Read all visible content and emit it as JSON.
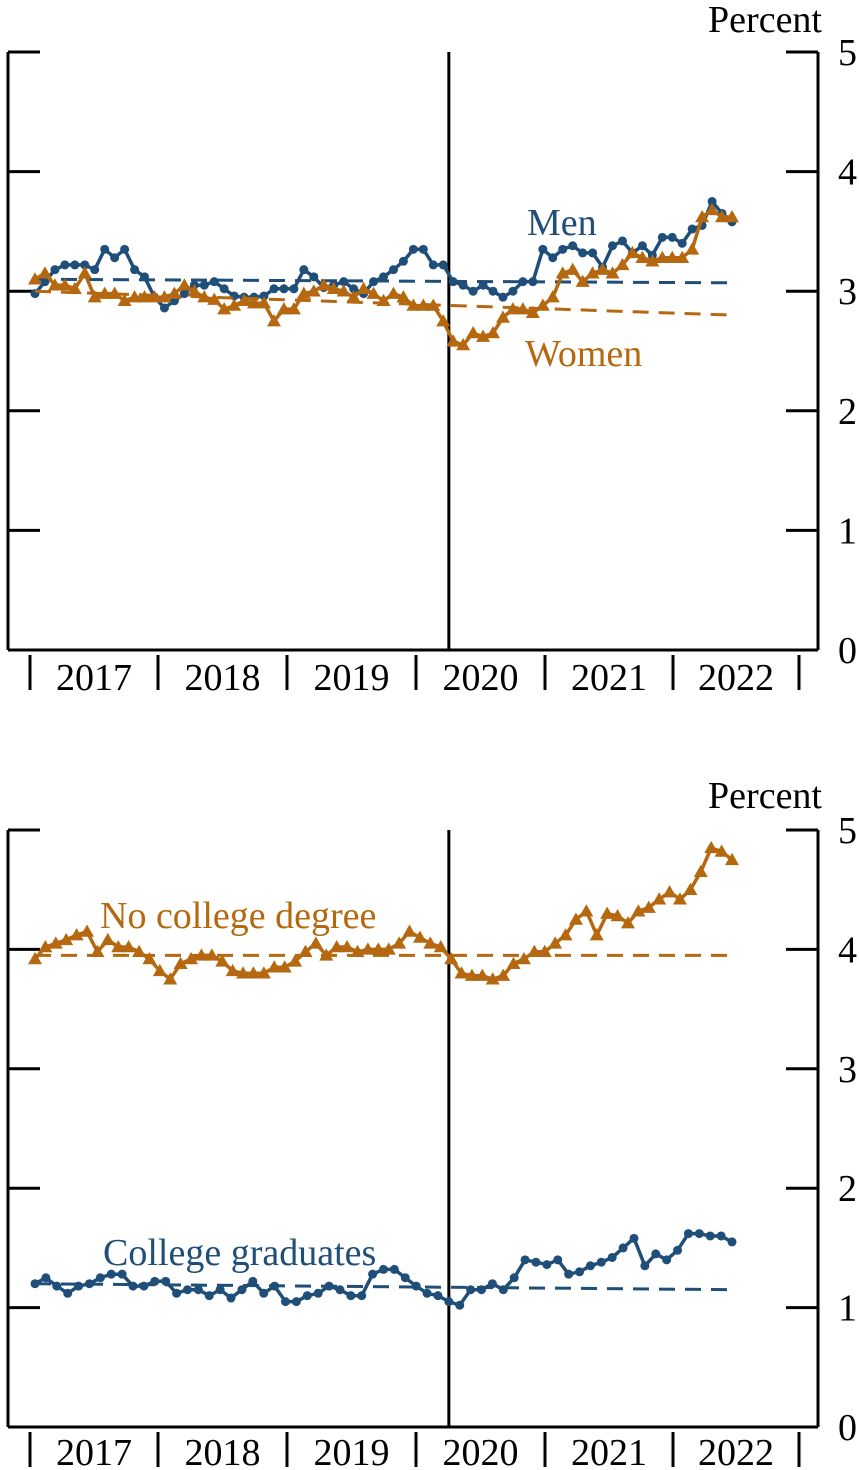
{
  "colors": {
    "men_blue": "#1f4e79",
    "women_orange": "#b5680f",
    "axis": "#000000"
  },
  "chart_data": [
    {
      "type": "line",
      "ylabel": "Percent",
      "y_ticks": [
        "0",
        "1",
        "2",
        "3",
        "4",
        "5"
      ],
      "ylim": [
        0,
        5
      ],
      "year_labels": [
        "2017",
        "2018",
        "2019",
        "2020",
        "2021",
        "2022"
      ],
      "x_range": [
        "2017-01",
        "2022-05"
      ],
      "event_line_date": "2020-03",
      "series": [
        {
          "name": "Men",
          "marker": "circle",
          "color": "#1f4e79",
          "trend": [
            3.1,
            3.07
          ],
          "values": [
            2.98,
            3.08,
            3.18,
            3.22,
            3.22,
            3.22,
            3.18,
            3.35,
            3.28,
            3.35,
            3.18,
            3.12,
            2.95,
            2.86,
            2.92,
            2.98,
            3.05,
            3.05,
            3.08,
            3.02,
            2.96,
            2.95,
            2.95,
            2.96,
            3.02,
            3.02,
            3.02,
            3.18,
            3.12,
            3.03,
            3.05,
            3.08,
            3.02,
            2.98,
            3.08,
            3.12,
            3.18,
            3.25,
            3.35,
            3.35,
            3.22,
            3.22,
            3.08,
            3.05,
            3.0,
            3.05,
            3.0,
            2.95,
            3.0,
            3.08,
            3.08,
            3.35,
            3.28,
            3.35,
            3.38,
            3.32,
            3.32,
            3.2,
            3.38,
            3.42,
            3.32,
            3.38,
            3.3,
            3.45,
            3.45,
            3.4,
            3.52,
            3.55,
            3.75,
            3.65,
            3.58
          ]
        },
        {
          "name": "Women",
          "marker": "triangle",
          "color": "#b5680f",
          "trend": [
            3.0,
            2.8
          ],
          "values": [
            3.1,
            3.15,
            3.05,
            3.05,
            3.02,
            3.15,
            2.95,
            2.98,
            2.98,
            2.92,
            2.95,
            2.95,
            2.95,
            2.95,
            2.98,
            3.05,
            3.0,
            2.95,
            2.93,
            2.85,
            2.88,
            2.92,
            2.9,
            2.9,
            2.75,
            2.85,
            2.85,
            2.98,
            3.0,
            3.05,
            3.02,
            3.0,
            2.95,
            3.02,
            2.98,
            2.92,
            2.98,
            2.95,
            2.88,
            2.88,
            2.88,
            2.75,
            2.58,
            2.55,
            2.65,
            2.62,
            2.65,
            2.78,
            2.85,
            2.85,
            2.82,
            2.88,
            2.95,
            3.15,
            3.18,
            3.08,
            3.15,
            3.18,
            3.15,
            3.22,
            3.32,
            3.28,
            3.25,
            3.28,
            3.28,
            3.28,
            3.35,
            3.62,
            3.68,
            3.62,
            3.62
          ]
        }
      ],
      "annotations": [
        "Men",
        "Women"
      ]
    },
    {
      "type": "line",
      "ylabel": "Percent",
      "y_ticks": [
        "0",
        "1",
        "2",
        "3",
        "4",
        "5"
      ],
      "ylim": [
        0,
        5
      ],
      "year_labels": [
        "2017",
        "2018",
        "2019",
        "2020",
        "2021",
        "2022"
      ],
      "x_range": [
        "2017-01",
        "2022-05"
      ],
      "event_line_date": "2020-03",
      "series": [
        {
          "name": "No college degree",
          "marker": "triangle",
          "color": "#b5680f",
          "trend": [
            3.95,
            3.95
          ],
          "values": [
            3.92,
            4.02,
            4.05,
            4.08,
            4.12,
            4.15,
            3.98,
            4.08,
            4.02,
            4.02,
            3.98,
            3.92,
            3.82,
            3.75,
            3.88,
            3.92,
            3.95,
            3.95,
            3.9,
            3.82,
            3.8,
            3.8,
            3.8,
            3.85,
            3.85,
            3.9,
            3.98,
            4.05,
            3.95,
            4.02,
            4.02,
            3.98,
            4.0,
            4.0,
            4.0,
            4.05,
            4.15,
            4.1,
            4.05,
            4.02,
            3.92,
            3.8,
            3.78,
            3.78,
            3.75,
            3.78,
            3.88,
            3.92,
            3.98,
            3.98,
            4.05,
            4.12,
            4.25,
            4.32,
            4.12,
            4.3,
            4.28,
            4.22,
            4.32,
            4.35,
            4.42,
            4.48,
            4.42,
            4.5,
            4.65,
            4.85,
            4.82,
            4.75
          ]
        },
        {
          "name": "College graduates",
          "marker": "circle",
          "color": "#1f4e79",
          "trend": [
            1.2,
            1.15
          ],
          "values": [
            1.2,
            1.25,
            1.18,
            1.12,
            1.18,
            1.2,
            1.25,
            1.28,
            1.28,
            1.18,
            1.18,
            1.22,
            1.22,
            1.12,
            1.15,
            1.15,
            1.1,
            1.15,
            1.08,
            1.15,
            1.22,
            1.12,
            1.18,
            1.05,
            1.05,
            1.1,
            1.12,
            1.18,
            1.15,
            1.1,
            1.1,
            1.28,
            1.32,
            1.32,
            1.25,
            1.18,
            1.12,
            1.1,
            1.05,
            1.02,
            1.15,
            1.15,
            1.2,
            1.15,
            1.25,
            1.4,
            1.38,
            1.36,
            1.4,
            1.28,
            1.3,
            1.35,
            1.38,
            1.42,
            1.5,
            1.58,
            1.35,
            1.45,
            1.4,
            1.48,
            1.62,
            1.62,
            1.6,
            1.6,
            1.55
          ]
        }
      ],
      "annotations": [
        "No college degree",
        "College graduates"
      ]
    }
  ]
}
